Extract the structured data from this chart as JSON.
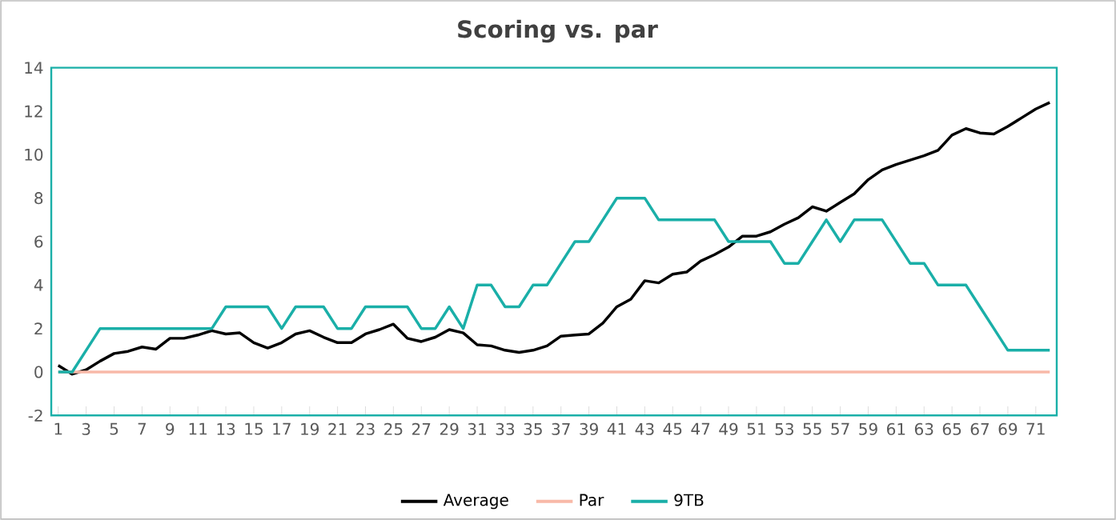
{
  "chart_data": {
    "type": "line",
    "title": "Scoring vs. par",
    "x": [
      1,
      2,
      3,
      4,
      5,
      6,
      7,
      8,
      9,
      10,
      11,
      12,
      13,
      14,
      15,
      16,
      17,
      18,
      19,
      20,
      21,
      22,
      23,
      24,
      25,
      26,
      27,
      28,
      29,
      30,
      31,
      32,
      33,
      34,
      35,
      36,
      37,
      38,
      39,
      40,
      41,
      42,
      43,
      44,
      45,
      46,
      47,
      48,
      49,
      50,
      51,
      52,
      53,
      54,
      55,
      56,
      57,
      58,
      59,
      60,
      61,
      62,
      63,
      64,
      65,
      66,
      67,
      68,
      69,
      70,
      71,
      72
    ],
    "series": [
      {
        "name": "Average",
        "color": "#000000",
        "values": [
          0.3,
          -0.1,
          0.1,
          0.5,
          0.85,
          0.95,
          1.15,
          1.05,
          1.55,
          1.55,
          1.7,
          1.9,
          1.75,
          1.8,
          1.35,
          1.1,
          1.35,
          1.75,
          1.9,
          1.6,
          1.35,
          1.35,
          1.75,
          1.95,
          2.2,
          1.55,
          1.4,
          1.6,
          1.95,
          1.8,
          1.25,
          1.2,
          1.0,
          0.9,
          1.0,
          1.2,
          1.65,
          1.7,
          1.75,
          2.25,
          3.0,
          3.35,
          4.2,
          4.1,
          4.5,
          4.6,
          5.1,
          5.4,
          5.75,
          6.25,
          6.25,
          6.45,
          6.8,
          7.1,
          7.6,
          7.4,
          7.8,
          8.2,
          8.85,
          9.3,
          9.55,
          9.75,
          9.95,
          10.2,
          10.9,
          11.2,
          11.0,
          10.95,
          11.3,
          11.7,
          12.1,
          12.4
        ]
      },
      {
        "name": "Par",
        "color": "#f8b9a8",
        "values": [
          0,
          0,
          0,
          0,
          0,
          0,
          0,
          0,
          0,
          0,
          0,
          0,
          0,
          0,
          0,
          0,
          0,
          0,
          0,
          0,
          0,
          0,
          0,
          0,
          0,
          0,
          0,
          0,
          0,
          0,
          0,
          0,
          0,
          0,
          0,
          0,
          0,
          0,
          0,
          0,
          0,
          0,
          0,
          0,
          0,
          0,
          0,
          0,
          0,
          0,
          0,
          0,
          0,
          0,
          0,
          0,
          0,
          0,
          0,
          0,
          0,
          0,
          0,
          0,
          0,
          0,
          0,
          0,
          0,
          0,
          0,
          0
        ]
      },
      {
        "name": "9TB",
        "color": "#1aafa8",
        "values": [
          0,
          0,
          1,
          2,
          2,
          2,
          2,
          2,
          2,
          2,
          2,
          2,
          3,
          3,
          3,
          3,
          2,
          3,
          3,
          3,
          2,
          2,
          3,
          3,
          3,
          3,
          2,
          2,
          3,
          2,
          4,
          4,
          3,
          3,
          4,
          4,
          5,
          6,
          6,
          7,
          8,
          8,
          8,
          7,
          7,
          7,
          7,
          7,
          6,
          6,
          6,
          6,
          5,
          5,
          6,
          7,
          6,
          7,
          7,
          7,
          6,
          5,
          5,
          4,
          4,
          4,
          3,
          2,
          1,
          1,
          1,
          1
        ]
      }
    ],
    "xlim": [
      0.5,
      72.5
    ],
    "xticks": [
      1,
      3,
      5,
      7,
      9,
      11,
      13,
      15,
      17,
      19,
      21,
      23,
      25,
      27,
      29,
      31,
      33,
      35,
      37,
      39,
      41,
      43,
      45,
      47,
      49,
      51,
      53,
      55,
      57,
      59,
      61,
      63,
      65,
      67,
      69,
      71
    ],
    "ylim": [
      -2,
      14
    ],
    "yticks": [
      -2,
      0,
      2,
      4,
      6,
      8,
      10,
      12,
      14
    ],
    "grid": false,
    "legend": "bottom",
    "marker": "none",
    "line_style": "solid"
  }
}
